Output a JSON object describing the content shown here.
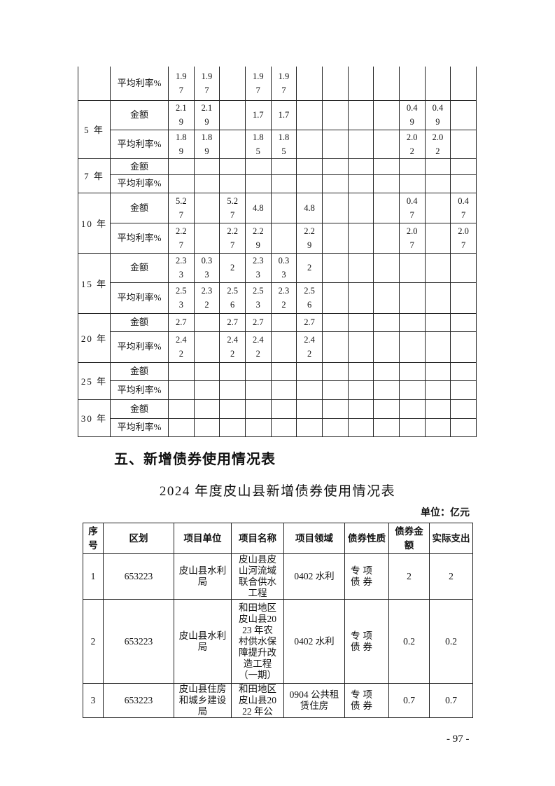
{
  "rate_table": {
    "groups": [
      {
        "term": "",
        "rows": [
          {
            "label": "平均利率%",
            "values": [
              "1.97",
              "1.97",
              "",
              "1.97",
              "1.97",
              "",
              "",
              "",
              "",
              "",
              "",
              ""
            ]
          }
        ]
      },
      {
        "term": "5 年",
        "rows": [
          {
            "label": "金额",
            "values": [
              "2.19",
              "2.19",
              "",
              "1.7",
              "1.7",
              "",
              "",
              "",
              "",
              "0.49",
              "0.49",
              ""
            ]
          },
          {
            "label": "平均利率%",
            "values": [
              "1.89",
              "1.89",
              "",
              "1.85",
              "1.85",
              "",
              "",
              "",
              "",
              "2.02",
              "2.02",
              ""
            ]
          }
        ]
      },
      {
        "term": "7 年",
        "rows": [
          {
            "label": "金额",
            "values": [
              "",
              "",
              "",
              "",
              "",
              "",
              "",
              "",
              "",
              "",
              "",
              ""
            ]
          },
          {
            "label": "平均利率%",
            "values": [
              "",
              "",
              "",
              "",
              "",
              "",
              "",
              "",
              "",
              "",
              "",
              ""
            ]
          }
        ]
      },
      {
        "term": "10 年",
        "rows": [
          {
            "label": "金额",
            "values": [
              "5.27",
              "",
              "5.27",
              "4.8",
              "",
              "4.8",
              "",
              "",
              "",
              "0.47",
              "",
              "0.47"
            ]
          },
          {
            "label": "平均利率%",
            "values": [
              "2.27",
              "",
              "2.27",
              "2.29",
              "",
              "2.29",
              "",
              "",
              "",
              "2.07",
              "",
              "2.07"
            ]
          }
        ]
      },
      {
        "term": "15 年",
        "rows": [
          {
            "label": "金额",
            "values": [
              "2.33",
              "0.33",
              "2",
              "2.33",
              "0.33",
              "2",
              "",
              "",
              "",
              "",
              "",
              ""
            ]
          },
          {
            "label": "平均利率%",
            "values": [
              "2.53",
              "2.32",
              "2.56",
              "2.53",
              "2.32",
              "2.56",
              "",
              "",
              "",
              "",
              "",
              ""
            ]
          }
        ]
      },
      {
        "term": "20 年",
        "rows": [
          {
            "label": "金额",
            "values": [
              "2.7",
              "",
              "2.7",
              "2.7",
              "",
              "2.7",
              "",
              "",
              "",
              "",
              "",
              ""
            ]
          },
          {
            "label": "平均利率%",
            "values": [
              "2.42",
              "",
              "2.42",
              "2.42",
              "",
              "2.42",
              "",
              "",
              "",
              "",
              "",
              ""
            ]
          }
        ]
      },
      {
        "term": "25 年",
        "rows": [
          {
            "label": "金额",
            "values": [
              "",
              "",
              "",
              "",
              "",
              "",
              "",
              "",
              "",
              "",
              "",
              ""
            ]
          },
          {
            "label": "平均利率%",
            "values": [
              "",
              "",
              "",
              "",
              "",
              "",
              "",
              "",
              "",
              "",
              "",
              ""
            ]
          }
        ]
      },
      {
        "term": "30 年",
        "rows": [
          {
            "label": "金额",
            "values": [
              "",
              "",
              "",
              "",
              "",
              "",
              "",
              "",
              "",
              "",
              "",
              ""
            ]
          },
          {
            "label": "平均利率%",
            "values": [
              "",
              "",
              "",
              "",
              "",
              "",
              "",
              "",
              "",
              "",
              "",
              ""
            ]
          }
        ]
      }
    ]
  },
  "section_heading": "五、新增债券使用情况表",
  "doc_title": "2024 年度皮山县新增债券使用情况表",
  "unit_label": "单位：亿元",
  "usage_table": {
    "headers": [
      "序号",
      "区划",
      "项目单位",
      "项目名称",
      "项目领域",
      "债券性质",
      "债券金额",
      "实际支出"
    ],
    "rows": [
      [
        "1",
        "653223",
        "皮山县水利局",
        "皮山县皮山河流域联合供水工程",
        "0402 水利",
        "专项债券",
        "2",
        "2"
      ],
      [
        "2",
        "653223",
        "皮山县水利局",
        "和田地区皮山县2023 年农村供水保障提升改造工程（一期）",
        "0402 水利",
        "专项债券",
        "0.2",
        "0.2"
      ],
      [
        "3",
        "653223",
        "皮山县住房和城乡建设局",
        "和田地区皮山县2022 年公",
        "0904 公共租赁住房",
        "专项债券",
        "0.7",
        "0.7"
      ]
    ]
  },
  "page_number": "- 97 -"
}
